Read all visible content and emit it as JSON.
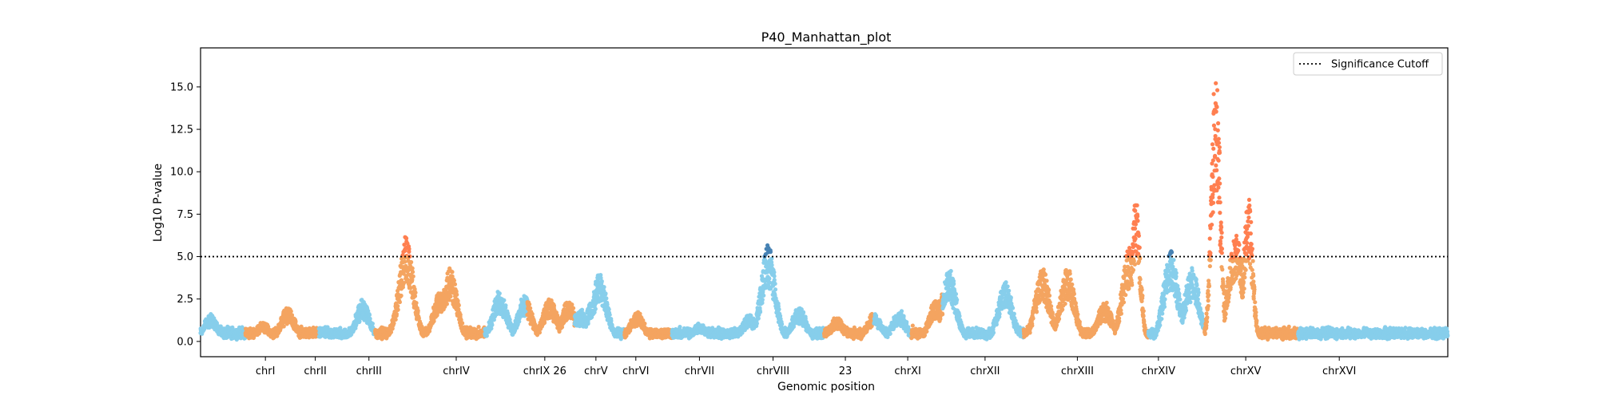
{
  "chart_data": {
    "type": "scatter",
    "title": "P40_Manhattan_plot",
    "xlabel": "Genomic position",
    "ylabel": "Log10 P-value",
    "xlim": [
      0,
      1000
    ],
    "ylim": [
      -0.9,
      17.3
    ],
    "yticks": [
      0.0,
      2.5,
      5.0,
      7.5,
      10.0,
      12.5,
      15.0
    ],
    "ytick_labels": [
      "0.0",
      "2.5",
      "5.0",
      "7.5",
      "10.0",
      "12.5",
      "15.0"
    ],
    "significance_cutoff": 5.0,
    "legend": {
      "placement": "top-right",
      "entries": [
        "Significance Cutoff"
      ]
    },
    "grid": false,
    "colors": {
      "odd_chrom": "#87ceeb",
      "even_chrom": "#f4a460",
      "sig_light": "#4682b4",
      "sig_dark": "#ff7f50",
      "cutoff_line": "#000000"
    },
    "chromosomes": [
      {
        "label": "chrI",
        "start": 0,
        "end": 33,
        "tick": 52,
        "color": "odd_chrom",
        "base": 0.7,
        "peaks": [
          [
            8,
            1.6
          ]
        ]
      },
      {
        "label": "chrII",
        "start": 33,
        "end": 117,
        "tick": 92,
        "color": "even_chrom",
        "base": 0.5,
        "peaks": [
          [
            70,
            2.0
          ],
          [
            50,
            1.1
          ]
        ]
      },
      {
        "label": "chrIII",
        "start": 117,
        "end": 168,
        "tick": 135,
        "color": "odd_chrom",
        "base": 0.8,
        "peaks": [
          [
            130,
            2.4
          ],
          [
            160,
            2.2
          ]
        ]
      },
      {
        "label": "chrIV",
        "start": 168,
        "end": 330,
        "tick": 205,
        "color": "even_chrom",
        "base": 0.6,
        "peaks": [
          [
            165,
            6.2
          ],
          [
            192,
            3.0
          ],
          [
            200,
            4.3
          ],
          [
            240,
            3.0
          ],
          [
            260,
            2.7
          ],
          [
            295,
            2.4
          ]
        ]
      },
      {
        "label": "chrIX 26",
        "start": 330,
        "end": 382,
        "tick": 276,
        "color": "odd_chrom",
        "base": 0.7,
        "peaks": [
          [
            280,
            2.5
          ],
          [
            305,
            1.8
          ]
        ]
      },
      {
        "label": "chrV",
        "start": 382,
        "end": 403,
        "tick": 317,
        "color": "even_chrom",
        "base": 0.6,
        "peaks": [
          [
            298,
            1.8
          ]
        ]
      },
      {
        "label": "chrVI",
        "start": 403,
        "end": 426,
        "tick": 349,
        "color": "odd_chrom",
        "base": 0.8,
        "peaks": [
          [
            315,
            2.5
          ],
          [
            320,
            4.0
          ]
        ]
      },
      {
        "label": "chrVII",
        "start": 426,
        "end": 507,
        "tick": 400,
        "color": "even_chrom",
        "base": 0.5,
        "peaks": [
          [
            350,
            1.7
          ]
        ]
      },
      {
        "label": "chrVIII",
        "start": 507,
        "end": 548,
        "tick": 459,
        "color": "odd_chrom",
        "base": 0.4,
        "peaks": [
          [
            400,
            1.0
          ],
          [
            440,
            1.6
          ]
        ]
      },
      {
        "label": "23",
        "start": 548,
        "end": 573,
        "tick": 517,
        "color": "even_chrom",
        "base": 0.6,
        "peaks": [
          [
            455,
            5.6
          ],
          [
            480,
            2.0
          ]
        ]
      },
      {
        "label": "chrXI",
        "start": 573,
        "end": 628,
        "tick": 567,
        "color": "odd_chrom",
        "base": 0.6,
        "peaks": [
          [
            510,
            1.4
          ],
          [
            540,
            1.7
          ]
        ]
      },
      {
        "label": "chrXII",
        "start": 628,
        "end": 724,
        "tick": 629,
        "color": "even_chrom",
        "base": 0.7,
        "peaks": [
          [
            560,
            1.8
          ],
          [
            590,
            2.5
          ],
          [
            590,
            2.5
          ]
        ]
      },
      {
        "label": "chrXIII",
        "start": 724,
        "end": 773,
        "tick": 703,
        "color": "odd_chrom",
        "base": 0.8,
        "peaks": [
          [
            600,
            4.3
          ],
          [
            645,
            3.5
          ],
          [
            675,
            4.3
          ]
        ]
      },
      {
        "label": "chrXIV",
        "start": 773,
        "end": 846,
        "tick": 768,
        "color": "even_chrom",
        "base": 0.9,
        "peaks": [
          [
            695,
            4.3
          ],
          [
            725,
            2.3
          ],
          [
            745,
            5.7
          ],
          [
            750,
            8.4
          ]
        ]
      },
      {
        "label": "chrXV",
        "start": 846,
        "end": 941,
        "tick": 838,
        "color": "odd_chrom",
        "base": 0.8,
        "peaks": [
          [
            778,
            5.4
          ],
          [
            795,
            4.3
          ]
        ]
      },
      {
        "label": "chrXVI",
        "start": 941,
        "end": 1000,
        "tick": 913,
        "color": "even_chrom",
        "base": 0.5,
        "peaks": [
          [
            814,
            16.5
          ],
          [
            840,
            8.7
          ],
          [
            830,
            6.5
          ]
        ]
      }
    ]
  }
}
